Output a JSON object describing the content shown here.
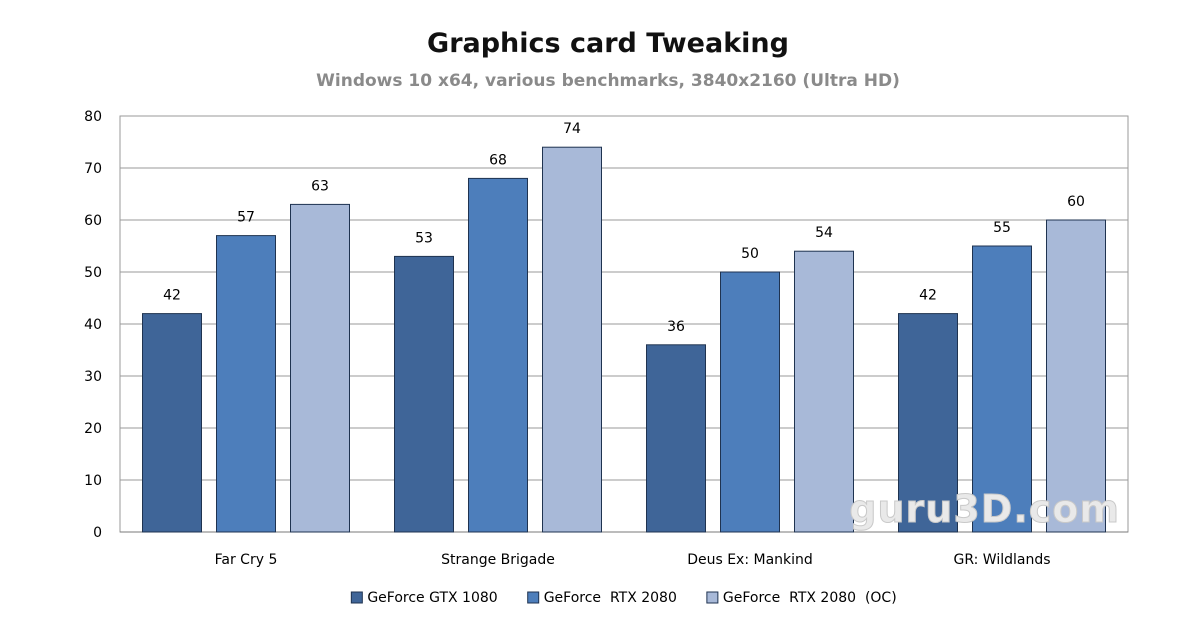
{
  "chart_data": {
    "type": "bar",
    "title": "Graphics card Tweaking",
    "subtitle": "Windows 10 x64, various benchmarks, 3840x2160 (Ultra HD)",
    "xlabel": "",
    "ylabel": "",
    "ylim": [
      0,
      80
    ],
    "yticks": [
      0,
      10,
      20,
      30,
      40,
      50,
      60,
      70,
      80
    ],
    "grid": true,
    "legend_position": "bottom",
    "categories": [
      "Far Cry 5",
      "Strange Brigade",
      "Deus Ex: Mankind",
      "GR: Wildlands"
    ],
    "series": [
      {
        "name": "GeForce GTX 1080",
        "values": [
          42,
          53,
          36,
          42
        ],
        "color": "#3f6598"
      },
      {
        "name": "GeForce  RTX 2080",
        "values": [
          57,
          68,
          50,
          55
        ],
        "color": "#4d7ebb"
      },
      {
        "name": "GeForce  RTX 2080  (OC)",
        "values": [
          63,
          74,
          54,
          60
        ],
        "color": "#a8b9d8"
      }
    ],
    "watermark": "guru3D.com"
  }
}
